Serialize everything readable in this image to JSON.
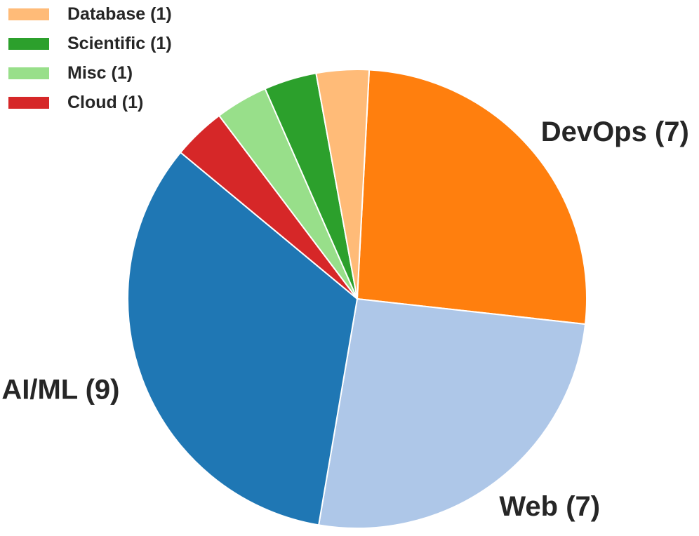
{
  "chart_data": {
    "type": "pie",
    "title": "",
    "slices": [
      {
        "name": "DevOps",
        "value": 7,
        "label": "DevOps (7)",
        "color": "#ff7f0e"
      },
      {
        "name": "Web",
        "value": 7,
        "label": "Web (7)",
        "color": "#aec7e8"
      },
      {
        "name": "AI/ML",
        "value": 9,
        "label": "AI/ML (9)",
        "color": "#1f77b4"
      },
      {
        "name": "Cloud",
        "value": 1,
        "label": "Cloud (1)",
        "color": "#d62728"
      },
      {
        "name": "Misc",
        "value": 1,
        "label": "Misc (1)",
        "color": "#98df8a"
      },
      {
        "name": "Scientific",
        "value": 1,
        "label": "Scientific (1)",
        "color": "#2ca02c"
      },
      {
        "name": "Database",
        "value": 1,
        "label": "Database (1)",
        "color": "#ffbb78"
      }
    ],
    "legend": {
      "placement": "top-left",
      "entries": [
        "Database (1)",
        "Scientific (1)",
        "Misc (1)",
        "Cloud (1)"
      ]
    }
  }
}
